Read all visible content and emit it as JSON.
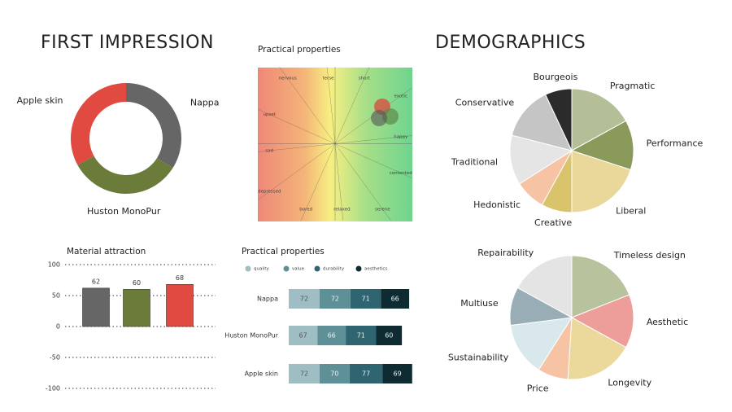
{
  "chart_data": [
    {
      "type": "donut",
      "title": "FIRST IMPRESSION",
      "categories": [
        "Nappa",
        "Huston MonoPur",
        "Apple skin"
      ],
      "values": [
        34,
        33,
        33
      ],
      "colors": [
        "#666666",
        "#6b7c3a",
        "#e04a40"
      ]
    },
    {
      "type": "mood",
      "title": "Practical properties",
      "labels": [
        "terse",
        "short",
        "exotic",
        "happy",
        "contented",
        "serene",
        "relaxed",
        "bored",
        "depressed",
        "sad",
        "upset",
        "nervous"
      ]
    },
    {
      "type": "bar",
      "title": "Material attraction",
      "categories": [
        null,
        null,
        null
      ],
      "values": [
        62,
        60,
        68
      ],
      "colors": [
        "#666666",
        "#6b7c3a",
        "#e04a40"
      ],
      "ylim": [
        -100,
        100
      ],
      "yticks": [
        -100,
        -50,
        0,
        50,
        100
      ],
      "grid": true
    },
    {
      "type": "hstack",
      "title": "Practical properties",
      "categories": [
        "Nappa",
        "Huston MonoPur",
        "Apple skin"
      ],
      "series": [
        {
          "name": "quality",
          "color": "#9fbec4",
          "values": [
            72,
            67,
            72
          ]
        },
        {
          "name": "value",
          "color": "#5e9098",
          "values": [
            72,
            66,
            70
          ]
        },
        {
          "name": "durability",
          "color": "#2f6570",
          "values": [
            71,
            71,
            77
          ]
        },
        {
          "name": "aesthetics",
          "color": "#0d2b31",
          "values": [
            66,
            60,
            69
          ]
        }
      ]
    },
    {
      "type": "pie",
      "title": "DEMOGRAPHICS",
      "categories": [
        "Pragmatic",
        "Performance",
        "Liberal",
        "Creative",
        "Hedonistic",
        "Traditional",
        "Conservative",
        "Bourgeois"
      ],
      "values": [
        17,
        13,
        20,
        8,
        8,
        13,
        14,
        7
      ],
      "colors": [
        "#b5bf97",
        "#8a9a5b",
        "#ead79a",
        "#d9c46b",
        "#f6c4a4",
        "#e5e5e5",
        "#c5c5c5",
        "#2b2b2b"
      ]
    },
    {
      "type": "pie",
      "categories": [
        "Timeless design",
        "Aesthetic",
        "Longevity",
        "Price",
        "Sustainability",
        "Multiuse",
        "Repairability"
      ],
      "values": [
        19,
        14,
        18,
        8,
        14,
        10,
        17
      ],
      "colors": [
        "#b8c29c",
        "#ee9e9a",
        "#ead99a",
        "#f6c4a4",
        "#d9e8ec",
        "#98adb5",
        "#e4e4e4"
      ]
    }
  ]
}
